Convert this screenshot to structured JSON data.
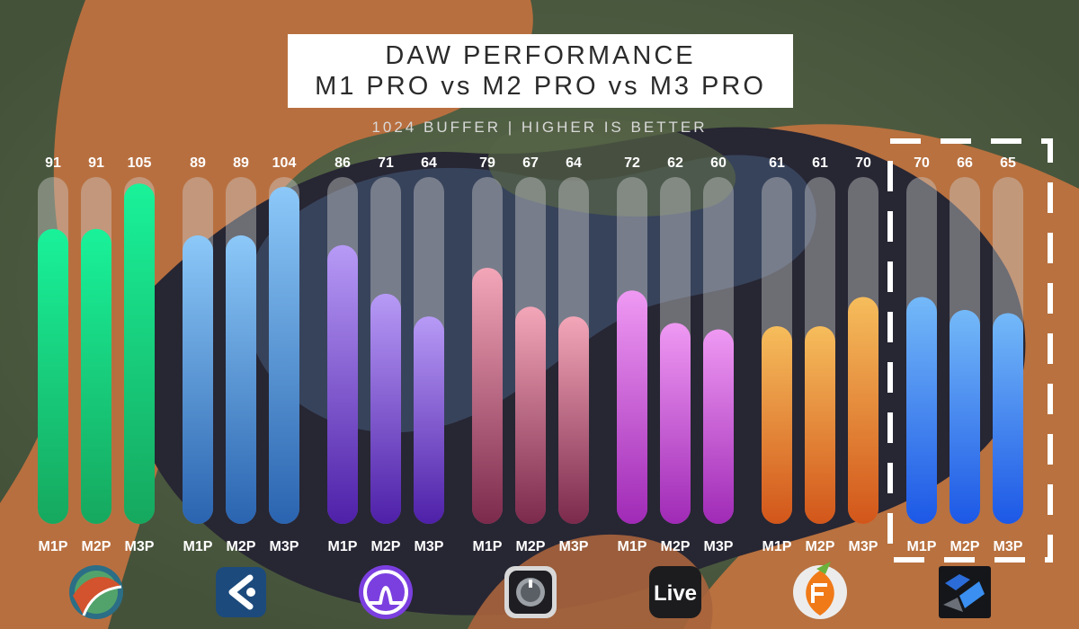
{
  "title": {
    "line1": "DAW PERFORMANCE",
    "line2": "M1 PRO vs M2 PRO vs M3 PRO"
  },
  "subtitle": "1024 BUFFER | HIGHER IS BETTER",
  "chart_data": {
    "type": "bar",
    "title": "DAW PERFORMANCE M1 PRO vs M2 PRO vs M3 PRO",
    "subtitle": "1024 BUFFER | HIGHER IS BETTER",
    "ylim": [
      0,
      107
    ],
    "grid": false,
    "highlighted_group": 6,
    "groups": [
      {
        "icon": "reaper-logo-icon",
        "categories": [
          "M1P",
          "M2P",
          "M3P"
        ],
        "values": [
          91,
          91,
          105
        ],
        "color_top": "#19f29a",
        "color_bottom": "#16a85e"
      },
      {
        "icon": "cubase-logo-icon",
        "categories": [
          "M1P",
          "M2P",
          "M3P"
        ],
        "values": [
          89,
          89,
          104
        ],
        "color_top": "#8cc8f8",
        "color_bottom": "#2a64b0"
      },
      {
        "icon": "pro-tools-logo-icon",
        "categories": [
          "M1P",
          "M2P",
          "M3P"
        ],
        "values": [
          86,
          71,
          64
        ],
        "color_top": "#b79af6",
        "color_bottom": "#4e20a8"
      },
      {
        "icon": "logic-pro-logo-icon",
        "categories": [
          "M1P",
          "M2P",
          "M3P"
        ],
        "values": [
          79,
          67,
          64
        ],
        "color_top": "#f3a6b8",
        "color_bottom": "#7c2a4c"
      },
      {
        "icon": "ableton-live-logo-icon",
        "label": "Live",
        "categories": [
          "M1P",
          "M2P",
          "M3P"
        ],
        "values": [
          72,
          62,
          60
        ],
        "color_top": "#ef99f3",
        "color_bottom": "#a02ab6"
      },
      {
        "icon": "fl-studio-logo-icon",
        "categories": [
          "M1P",
          "M2P",
          "M3P"
        ],
        "values": [
          61,
          61,
          70
        ],
        "color_top": "#f6bd5c",
        "color_bottom": "#d2561a"
      },
      {
        "icon": "bitwig-logo-icon",
        "categories": [
          "M1P",
          "M2P",
          "M3P"
        ],
        "values": [
          70,
          66,
          65
        ],
        "color_top": "#74b9f8",
        "color_bottom": "#1c58e6"
      }
    ]
  }
}
